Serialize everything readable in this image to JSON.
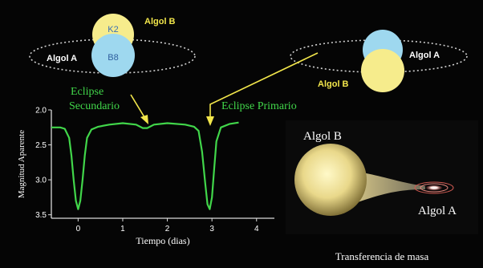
{
  "top_left": {
    "algol_b_label": "Algol B",
    "algol_a_label": "Algol A",
    "k2_label": "K2",
    "b8_label": "B8"
  },
  "top_right": {
    "algol_a_label": "Algol A",
    "algol_b_label": "Algol B"
  },
  "eclipse_labels": {
    "secondary_line1": "Eclipse",
    "secondary_line2": "Secundario",
    "primary": "Eclipse Primario"
  },
  "mass_transfer": {
    "algol_b_label": "Algol B",
    "algol_a_label": "Algol A",
    "caption": "Transferencia de masa"
  },
  "colors": {
    "curve": "#41d64a",
    "arrow": "#f2e64b",
    "star_yellow": "#f6ec8c",
    "star_blue": "#9ed8ef",
    "label_yellow": "#f2e64b",
    "axis": "#d9d9d9"
  },
  "chart_data": {
    "type": "line",
    "xlabel": "Tiempo (dias)",
    "ylabel": "Magnitud Aparente",
    "xlim": [
      -0.6,
      4.4
    ],
    "ylim": [
      3.55,
      2.0
    ],
    "y_inverted": true,
    "xticks": [
      0,
      1,
      2,
      3,
      4
    ],
    "yticks": [
      2.0,
      2.5,
      3.0,
      3.5
    ],
    "xtick_labels": [
      "0",
      "1",
      "2",
      "3",
      "4"
    ],
    "ytick_labels": [
      "2.0",
      "2.5",
      "3.0",
      "3.5"
    ],
    "series": [
      {
        "x": [
          -0.6,
          -0.4,
          -0.3,
          -0.2,
          -0.15,
          -0.1,
          -0.05,
          0.0,
          0.05,
          0.1,
          0.15,
          0.2,
          0.3,
          0.45,
          0.7,
          1.0,
          1.3,
          1.45,
          1.55,
          1.7,
          2.0,
          2.4,
          2.6,
          2.7,
          2.78,
          2.85,
          2.9,
          2.95,
          3.0,
          3.05,
          3.1,
          3.2,
          3.4,
          3.6
        ],
        "y": [
          2.25,
          2.25,
          2.27,
          2.4,
          2.65,
          3.0,
          3.3,
          3.42,
          3.3,
          3.0,
          2.65,
          2.4,
          2.28,
          2.24,
          2.21,
          2.19,
          2.21,
          2.26,
          2.26,
          2.21,
          2.19,
          2.21,
          2.24,
          2.3,
          2.6,
          3.05,
          3.35,
          3.42,
          3.25,
          2.85,
          2.45,
          2.25,
          2.2,
          2.18
        ]
      }
    ]
  }
}
